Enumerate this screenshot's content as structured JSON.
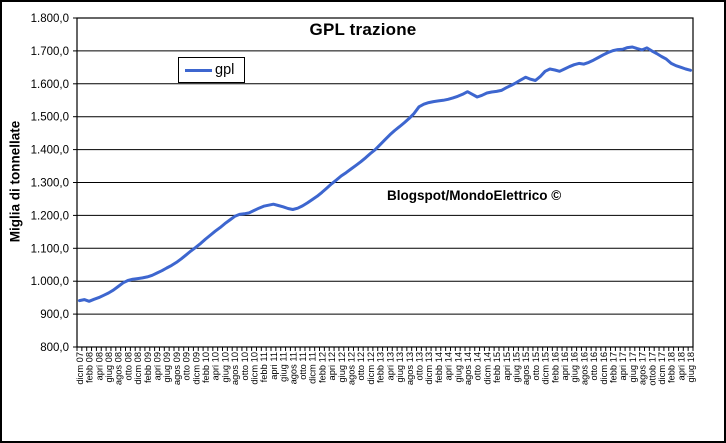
{
  "frame": {
    "background": "#FFFFFF",
    "border_color": "#000000",
    "grid_color": "#000000"
  },
  "chart_data": {
    "type": "line",
    "title": "GPL trazione",
    "ylabel": "Miglia di tonnellate",
    "xlabel": "",
    "annotation": "Blogspot/MondoElettrico ©",
    "grid": "horizontal",
    "legend": {
      "position": "inside-top-left",
      "entries": [
        {
          "label": "gpl",
          "color": "#3D66CF"
        }
      ]
    },
    "ylim": [
      800,
      1800
    ],
    "ytick_step": 100,
    "ytick_labels": [
      "800,0",
      "900,0",
      "1.000,0",
      "1.100,0",
      "1.200,0",
      "1.300,0",
      "1.400,0",
      "1.500,0",
      "1.600,0",
      "1.700,0",
      "1.800,0"
    ],
    "label_every_n_months": 2,
    "categories": [
      "dicm 07",
      "febb 08",
      "apri 08",
      "giug 08",
      "agos 08",
      "otto 08",
      "dicm 08",
      "febb 09",
      "apri 09",
      "giug 09",
      "agos 09",
      "otto 09",
      "dicm 09",
      "febb 10",
      "apri 10",
      "giug 10",
      "agos 10",
      "otto 10",
      "dicm 10",
      "febb 11",
      "apri 11",
      "giug 11",
      "agos 11",
      "otto 11",
      "dicm 11",
      "febb 12",
      "apri 12",
      "giug 12",
      "agos 12",
      "otto 12",
      "dicm 12",
      "febb 13",
      "apri 13",
      "giug 13",
      "agos 13",
      "otto 13",
      "dicm 13",
      "febb 14",
      "apri 14",
      "giug 14",
      "agos 14",
      "otto 14",
      "dicm 14",
      "febb 15",
      "apri 15",
      "giug 15",
      "agos 15",
      "otto 15",
      "dicm 15",
      "febb 16",
      "apri 16",
      "giug 16",
      "agos 16",
      "otto 16",
      "dicm 16",
      "febb 17",
      "apri 17",
      "giug 17",
      "agos 17",
      "ottob 17",
      "dicm 17",
      "febb 18",
      "apri 18",
      "giug 18"
    ],
    "series": [
      {
        "name": "gpl",
        "color": "#3D66CF",
        "values": [
          941,
          944,
          939,
          945,
          950,
          957,
          964,
          973,
          984,
          995,
          1002,
          1006,
          1008,
          1010,
          1013,
          1018,
          1025,
          1032,
          1040,
          1048,
          1057,
          1068,
          1080,
          1092,
          1103,
          1115,
          1128,
          1140,
          1152,
          1163,
          1175,
          1186,
          1197,
          1203,
          1205,
          1208,
          1215,
          1222,
          1228,
          1231,
          1234,
          1230,
          1226,
          1221,
          1218,
          1222,
          1229,
          1238,
          1248,
          1258,
          1270,
          1283,
          1296,
          1308,
          1320,
          1330,
          1341,
          1352,
          1363,
          1375,
          1388,
          1400,
          1415,
          1430,
          1445,
          1458,
          1470,
          1482,
          1495,
          1510,
          1530,
          1538,
          1543,
          1546,
          1548,
          1550,
          1553,
          1557,
          1562,
          1568,
          1576,
          1568,
          1560,
          1565,
          1572,
          1575,
          1577,
          1580,
          1588,
          1595,
          1603,
          1612,
          1620,
          1614,
          1610,
          1622,
          1638,
          1645,
          1642,
          1638,
          1645,
          1652,
          1658,
          1662,
          1660,
          1665,
          1672,
          1680,
          1688,
          1695,
          1701,
          1704,
          1705,
          1710,
          1712,
          1707,
          1703,
          1709,
          1700,
          1692,
          1683,
          1675,
          1662,
          1655,
          1650,
          1645,
          1641
        ]
      }
    ]
  }
}
